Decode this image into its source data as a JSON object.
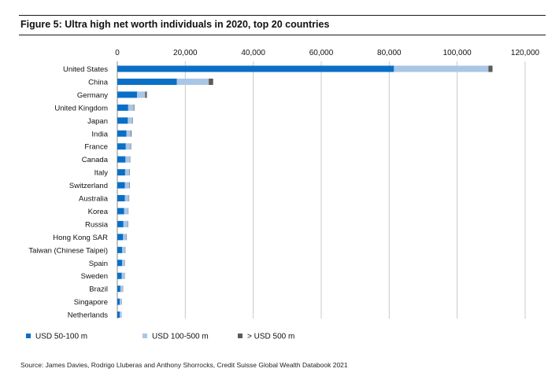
{
  "figure": {
    "title": "Figure 5: Ultra high net worth individuals in 2020, top 20 countries",
    "source": "Source: James Davies, Rodrigo Lluberas and Anthony Shorrocks, Credit Suisse Global Wealth Databook 2021"
  },
  "chart_data": {
    "type": "bar",
    "orientation": "horizontal",
    "stacked": true,
    "title": "Figure 5: Ultra high net worth individuals in 2020, top 20 countries",
    "xlabel": "",
    "ylabel": "",
    "xlim": [
      0,
      120000
    ],
    "x_ticks": [
      0,
      20000,
      40000,
      60000,
      80000,
      100000,
      120000
    ],
    "x_tick_labels": [
      "0",
      "20,000",
      "40,000",
      "60,000",
      "80,000",
      "100,000",
      "120,000"
    ],
    "x_axis_position": "top",
    "grid": "vertical",
    "legend_position": "bottom-left",
    "categories": [
      "United States",
      "China",
      "Germany",
      "United Kingdom",
      "Japan",
      "India",
      "France",
      "Canada",
      "Italy",
      "Switzerland",
      "Australia",
      "Korea",
      "Russia",
      "Hong Kong SAR",
      "Taiwan (Chinese Taipei)",
      "Spain",
      "Sweden",
      "Brazil",
      "Singapore",
      "Netherlands"
    ],
    "series": [
      {
        "name": "USD 50-100 m",
        "color": "#0a6fc6",
        "values": [
          81400,
          17500,
          5800,
          3200,
          3100,
          2700,
          2500,
          2400,
          2300,
          2200,
          2200,
          2000,
          1800,
          1700,
          1400,
          1400,
          1300,
          900,
          700,
          700
        ]
      },
      {
        "name": "USD 100-500 m",
        "color": "#a9c6e6",
        "values": [
          27800,
          9400,
          2400,
          1600,
          1400,
          1300,
          1400,
          1300,
          1300,
          1300,
          1200,
          1200,
          1200,
          1000,
          900,
          800,
          800,
          700,
          600,
          500
        ]
      },
      {
        "name": "> USD 500 m",
        "color": "#5b5b5b",
        "values": [
          1200,
          1300,
          500,
          200,
          100,
          200,
          150,
          100,
          100,
          150,
          100,
          80,
          150,
          100,
          80,
          50,
          80,
          80,
          50,
          50
        ]
      }
    ]
  }
}
